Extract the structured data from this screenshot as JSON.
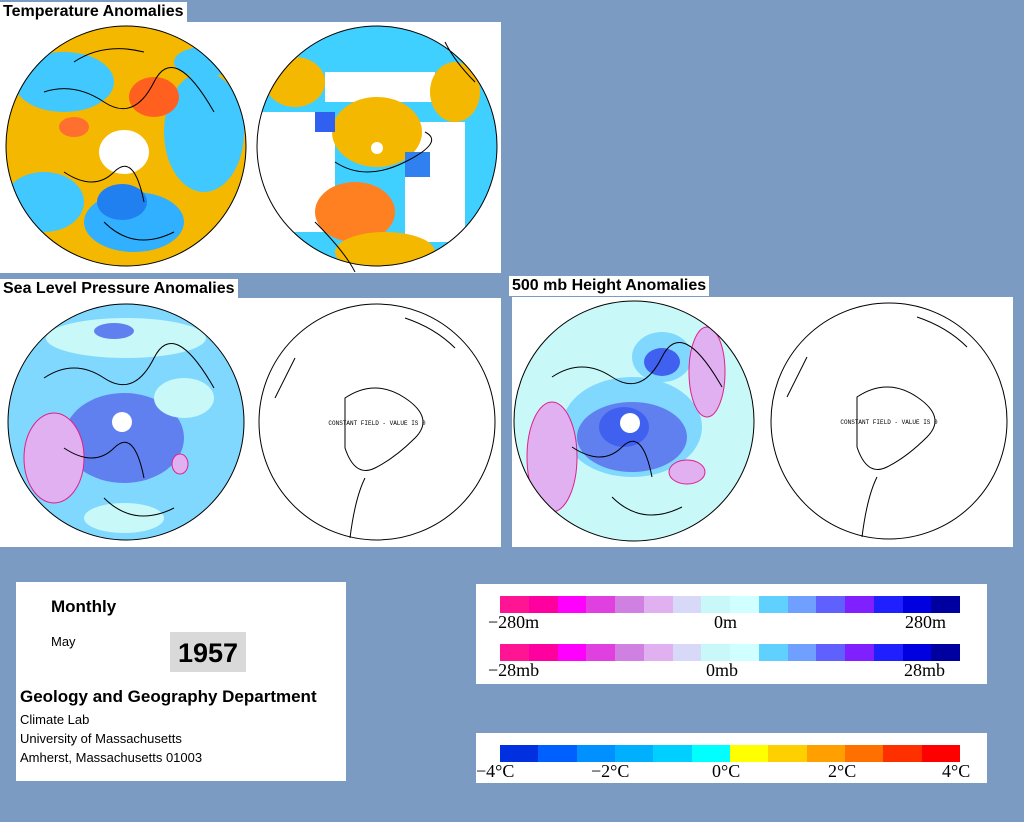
{
  "panels": {
    "temperature": {
      "title": "Temperature Anomalies"
    },
    "slp": {
      "title": "Sea Level Pressure Anomalies",
      "south_label": "CONSTANT FIELD - VALUE IS 0"
    },
    "height500": {
      "title": "500 mb Height Anomalies",
      "south_label": "CONSTANT FIELD - VALUE IS 0"
    }
  },
  "info": {
    "mode": "Monthly",
    "month": "May",
    "year": "1957",
    "department": "Geology and Geography Department",
    "lab": "Climate Lab",
    "university": "University of Massachusetts",
    "address": "Amherst, Massachusetts 01003"
  },
  "legend_pressure": {
    "height_ticks": [
      "−280m",
      "0m",
      "280m"
    ],
    "pressure_ticks": [
      "−28mb",
      "0mb",
      "28mb"
    ],
    "colors": [
      "#ff1493",
      "#ff00a0",
      "#ff00ff",
      "#e040e0",
      "#d080e0",
      "#e0b0f0",
      "#d8d8f8",
      "#c8f8f8",
      "#d0ffff",
      "#60d0ff",
      "#70a0ff",
      "#6060ff",
      "#8020ff",
      "#2020ff",
      "#0000e0",
      "#0000a0"
    ]
  },
  "legend_temperature": {
    "ticks": [
      "−4°C",
      "−2°C",
      "0°C",
      "2°C",
      "4°C"
    ],
    "colors": [
      "#0030e0",
      "#0060ff",
      "#0090ff",
      "#00b0ff",
      "#00d0ff",
      "#00ffff",
      "#ffff00",
      "#ffd000",
      "#ffa000",
      "#ff7000",
      "#ff3000",
      "#ff0000"
    ]
  }
}
